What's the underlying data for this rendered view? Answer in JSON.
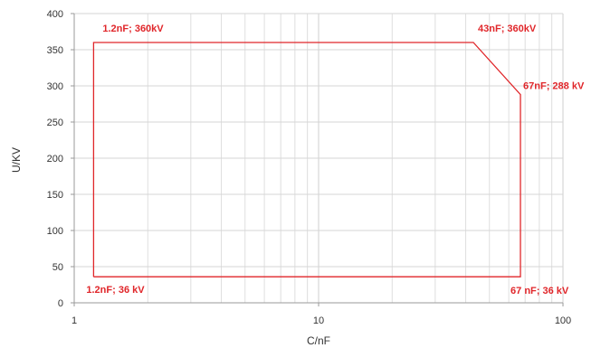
{
  "chart_data": {
    "type": "line",
    "title": "",
    "xlabel": "C/nF",
    "ylabel": "U/KV",
    "x_scale": "log",
    "xlim": [
      1,
      100
    ],
    "ylim": [
      0,
      400
    ],
    "x_ticks": [
      1,
      10,
      100
    ],
    "x_tick_labels": [
      "1",
      "10",
      "100"
    ],
    "y_ticks": [
      0,
      50,
      100,
      150,
      200,
      250,
      300,
      350,
      400
    ],
    "y_tick_labels": [
      "0",
      "50",
      "100",
      "150",
      "200",
      "250",
      "300",
      "350",
      "400"
    ],
    "grid": true,
    "legend": "none",
    "series": [
      {
        "color": "#e0262a",
        "points": [
          {
            "x": 1.2,
            "y": 36
          },
          {
            "x": 1.2,
            "y": 360
          },
          {
            "x": 43,
            "y": 360
          },
          {
            "x": 67,
            "y": 288
          },
          {
            "x": 67,
            "y": 36
          },
          {
            "x": 1.2,
            "y": 36
          }
        ]
      }
    ],
    "annotations": [
      {
        "text": "1.2nF; 360kV",
        "x": 1.2,
        "y": 360
      },
      {
        "text": "43nF; 360kV",
        "x": 43,
        "y": 360
      },
      {
        "text": "67nF; 288 kV",
        "x": 67,
        "y": 288
      },
      {
        "text": "1.2nF; 36 kV",
        "x": 1.2,
        "y": 36
      },
      {
        "text": "67 nF; 36 kV",
        "x": 67,
        "y": 36
      }
    ]
  }
}
